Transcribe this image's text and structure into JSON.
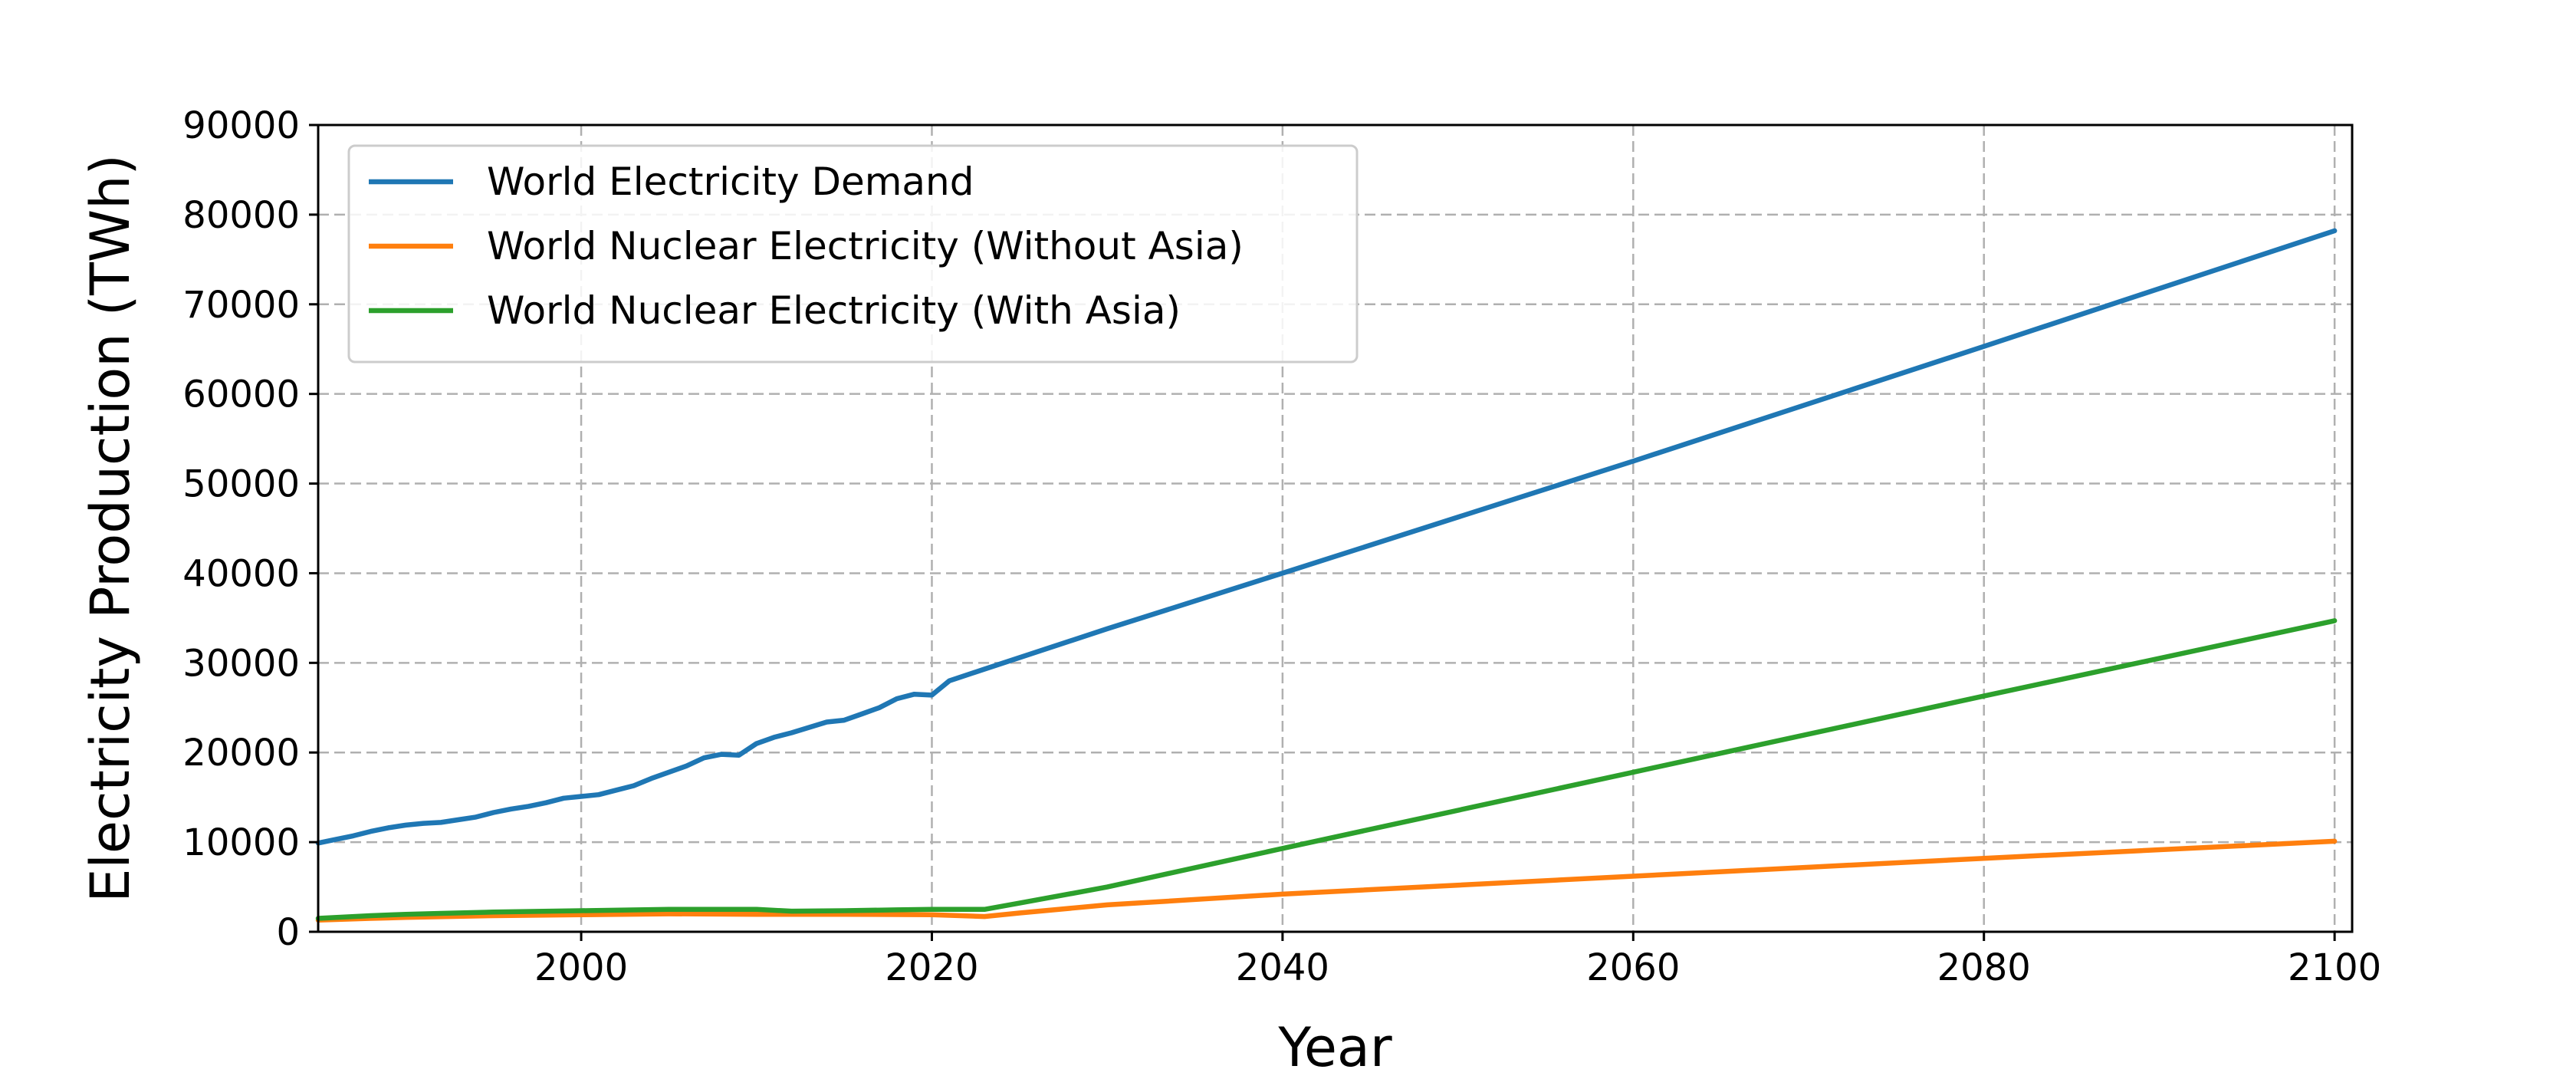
{
  "chart_data": {
    "type": "line",
    "title": "",
    "xlabel": "Year",
    "ylabel": "Electricity Production (TWh)",
    "xlim": [
      1985,
      2101
    ],
    "ylim": [
      0,
      90000
    ],
    "xticks": [
      2000,
      2020,
      2040,
      2060,
      2080,
      2100
    ],
    "yticks": [
      0,
      10000,
      20000,
      30000,
      40000,
      50000,
      60000,
      70000,
      80000,
      90000
    ],
    "grid": true,
    "legend_position": "upper-left",
    "series": [
      {
        "name": "World Electricity Demand",
        "color": "#1f77b4",
        "points": [
          [
            1985,
            9900
          ],
          [
            1986,
            10300
          ],
          [
            1987,
            10700
          ],
          [
            1988,
            11200
          ],
          [
            1989,
            11600
          ],
          [
            1990,
            11900
          ],
          [
            1991,
            12100
          ],
          [
            1992,
            12200
          ],
          [
            1993,
            12500
          ],
          [
            1994,
            12800
          ],
          [
            1995,
            13300
          ],
          [
            1996,
            13700
          ],
          [
            1997,
            14000
          ],
          [
            1998,
            14400
          ],
          [
            1999,
            14900
          ],
          [
            2000,
            15100
          ],
          [
            2001,
            15300
          ],
          [
            2002,
            15800
          ],
          [
            2003,
            16300
          ],
          [
            2004,
            17100
          ],
          [
            2005,
            17800
          ],
          [
            2006,
            18500
          ],
          [
            2007,
            19400
          ],
          [
            2008,
            19800
          ],
          [
            2009,
            19700
          ],
          [
            2010,
            21000
          ],
          [
            2011,
            21700
          ],
          [
            2012,
            22200
          ],
          [
            2013,
            22800
          ],
          [
            2014,
            23400
          ],
          [
            2015,
            23600
          ],
          [
            2016,
            24300
          ],
          [
            2017,
            25000
          ],
          [
            2018,
            26000
          ],
          [
            2019,
            26500
          ],
          [
            2020,
            26400
          ],
          [
            2021,
            28000
          ],
          [
            2023,
            29300
          ],
          [
            2030,
            33800
          ],
          [
            2040,
            40000
          ],
          [
            2060,
            52500
          ],
          [
            2080,
            65300
          ],
          [
            2100,
            78200
          ]
        ]
      },
      {
        "name": "World Nuclear Electricity (Without Asia)",
        "color": "#ff7f0e",
        "points": [
          [
            1985,
            1300
          ],
          [
            1988,
            1500
          ],
          [
            1990,
            1600
          ],
          [
            1995,
            1800
          ],
          [
            2000,
            1900
          ],
          [
            2005,
            2000
          ],
          [
            2010,
            1950
          ],
          [
            2015,
            1950
          ],
          [
            2020,
            1900
          ],
          [
            2023,
            1700
          ],
          [
            2025,
            2100
          ],
          [
            2030,
            3000
          ],
          [
            2040,
            4200
          ],
          [
            2060,
            6200
          ],
          [
            2080,
            8200
          ],
          [
            2100,
            10100
          ]
        ]
      },
      {
        "name": "World Nuclear Electricity (With Asia)",
        "color": "#2ca02c",
        "points": [
          [
            1985,
            1500
          ],
          [
            1988,
            1800
          ],
          [
            1990,
            1950
          ],
          [
            1992,
            2050
          ],
          [
            1995,
            2200
          ],
          [
            2000,
            2350
          ],
          [
            2005,
            2500
          ],
          [
            2008,
            2500
          ],
          [
            2010,
            2500
          ],
          [
            2012,
            2300
          ],
          [
            2015,
            2350
          ],
          [
            2018,
            2450
          ],
          [
            2020,
            2500
          ],
          [
            2023,
            2500
          ],
          [
            2025,
            3200
          ],
          [
            2030,
            5000
          ],
          [
            2040,
            9300
          ],
          [
            2060,
            17800
          ],
          [
            2080,
            26300
          ],
          [
            2100,
            34700
          ]
        ]
      }
    ]
  }
}
